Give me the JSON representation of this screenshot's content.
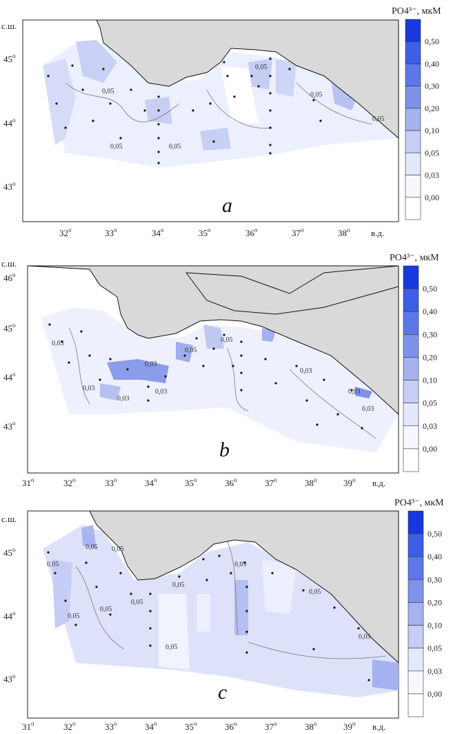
{
  "colorbar": {
    "title": "PO4³⁻, мкМ",
    "levels": [
      "0,50",
      "0,40",
      "0,30",
      "0,20",
      "0,10",
      "0,05",
      "0,03",
      "0,00"
    ],
    "colors": [
      "#1838e0",
      "#3d5ee6",
      "#5b78e8",
      "#7e92ea",
      "#a4b2ef",
      "#c6cef5",
      "#e4e8fb",
      "#f7f8fe",
      "#ffffff"
    ]
  },
  "axes": {
    "lat_label": "с.ш.",
    "lon_label": "в.д."
  },
  "panels": [
    {
      "id": "a",
      "label": "a",
      "lat_ticks": [
        "45",
        "44",
        "43"
      ],
      "lon_ticks": [
        "32",
        "33",
        "34",
        "35",
        "36",
        "37",
        "38"
      ],
      "contour_labels": [
        "0,05",
        "0,05",
        "0,05",
        "0,05",
        "0,05",
        "0,05"
      ]
    },
    {
      "id": "b",
      "label": "b",
      "lat_ticks": [
        "46",
        "45",
        "44",
        "43"
      ],
      "lon_ticks": [
        "31",
        "32",
        "33",
        "34",
        "35",
        "36",
        "37",
        "38",
        "39"
      ],
      "contour_labels": [
        "0,03",
        "0,03",
        "0,03",
        "0,03",
        "0,03",
        "0,05",
        "0,05",
        "0,03",
        "0,03",
        "0,03"
      ]
    },
    {
      "id": "c",
      "label": "c",
      "lat_ticks": [
        "45",
        "44",
        "43"
      ],
      "lon_ticks": [
        "31",
        "32",
        "33",
        "34",
        "35",
        "36",
        "37",
        "38",
        "39"
      ],
      "contour_labels": [
        "0,05",
        "0,05",
        "0,05",
        "0,05",
        "0,05",
        "0,05",
        "0,05",
        "0,05",
        "0,05",
        "0,05",
        "0,05"
      ]
    }
  ],
  "degree_sign": "o"
}
